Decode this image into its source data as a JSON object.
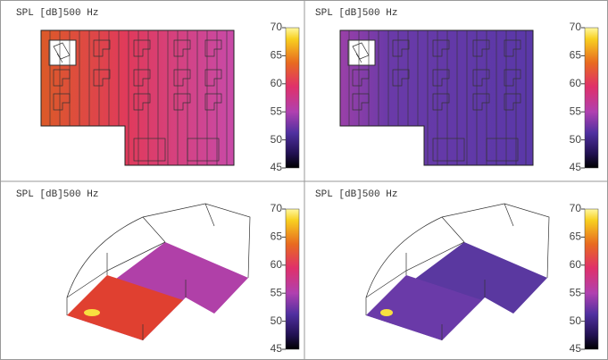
{
  "panels": [
    {
      "title": "SPL   [dB]500 Hz",
      "colorbar": {
        "ticks": [
          70,
          65,
          60,
          55,
          50,
          45
        ]
      }
    },
    {
      "title": "SPL   [dB]500 Hz",
      "colorbar": {
        "ticks": [
          70,
          65,
          60,
          55,
          50,
          45
        ]
      }
    },
    {
      "title": "SPL   [dB]500 Hz",
      "colorbar": {
        "ticks": [
          70,
          65,
          60,
          55,
          50,
          45
        ]
      }
    },
    {
      "title": "SPL   [dB]500 Hz",
      "colorbar": {
        "ticks": [
          70,
          65,
          60,
          55,
          50,
          45
        ]
      }
    }
  ]
}
